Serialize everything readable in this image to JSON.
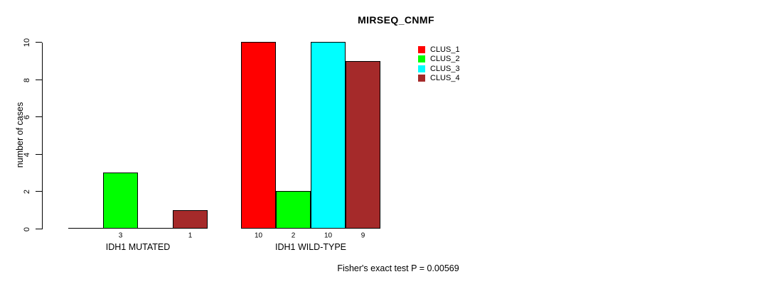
{
  "title": "MIRSEQ_CNMF",
  "chart_data": {
    "type": "bar",
    "title": "MIRSEQ_CNMF",
    "xlabel": "",
    "ylabel": "number of cases",
    "ylim": [
      0,
      10
    ],
    "yticks": [
      0,
      2,
      4,
      6,
      8,
      10
    ],
    "grid": false,
    "legend_position": "right-top",
    "categories": [
      "IDH1 MUTATED",
      "IDH1 WILD-TYPE"
    ],
    "series": [
      {
        "name": "CLUS_1",
        "color": "#FF0000",
        "values": [
          0,
          10
        ]
      },
      {
        "name": "CLUS_2",
        "color": "#00FF00",
        "values": [
          3,
          2
        ]
      },
      {
        "name": "CLUS_3",
        "color": "#00FFFF",
        "values": [
          0,
          10
        ]
      },
      {
        "name": "CLUS_4",
        "color": "#A52A2A",
        "values": [
          1,
          9
        ]
      }
    ],
    "value_label_rule": "shown under each bar only when value > 0",
    "annotation": "Fisher's exact test P = 0.00569",
    "axis_color": "#000000",
    "background_color": "#FFFFFF"
  }
}
